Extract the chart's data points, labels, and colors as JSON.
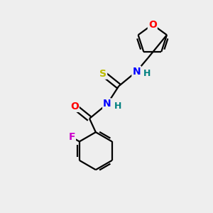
{
  "bg_color": "#eeeeee",
  "atom_colors": {
    "O": "#ff0000",
    "S": "#bbbb00",
    "N": "#0000ff",
    "F": "#cc00cc",
    "H_label": "#008080",
    "C": "#000000"
  },
  "bond_color": "#000000",
  "bond_width": 1.6,
  "figsize": [
    3.0,
    3.0
  ],
  "dpi": 100
}
